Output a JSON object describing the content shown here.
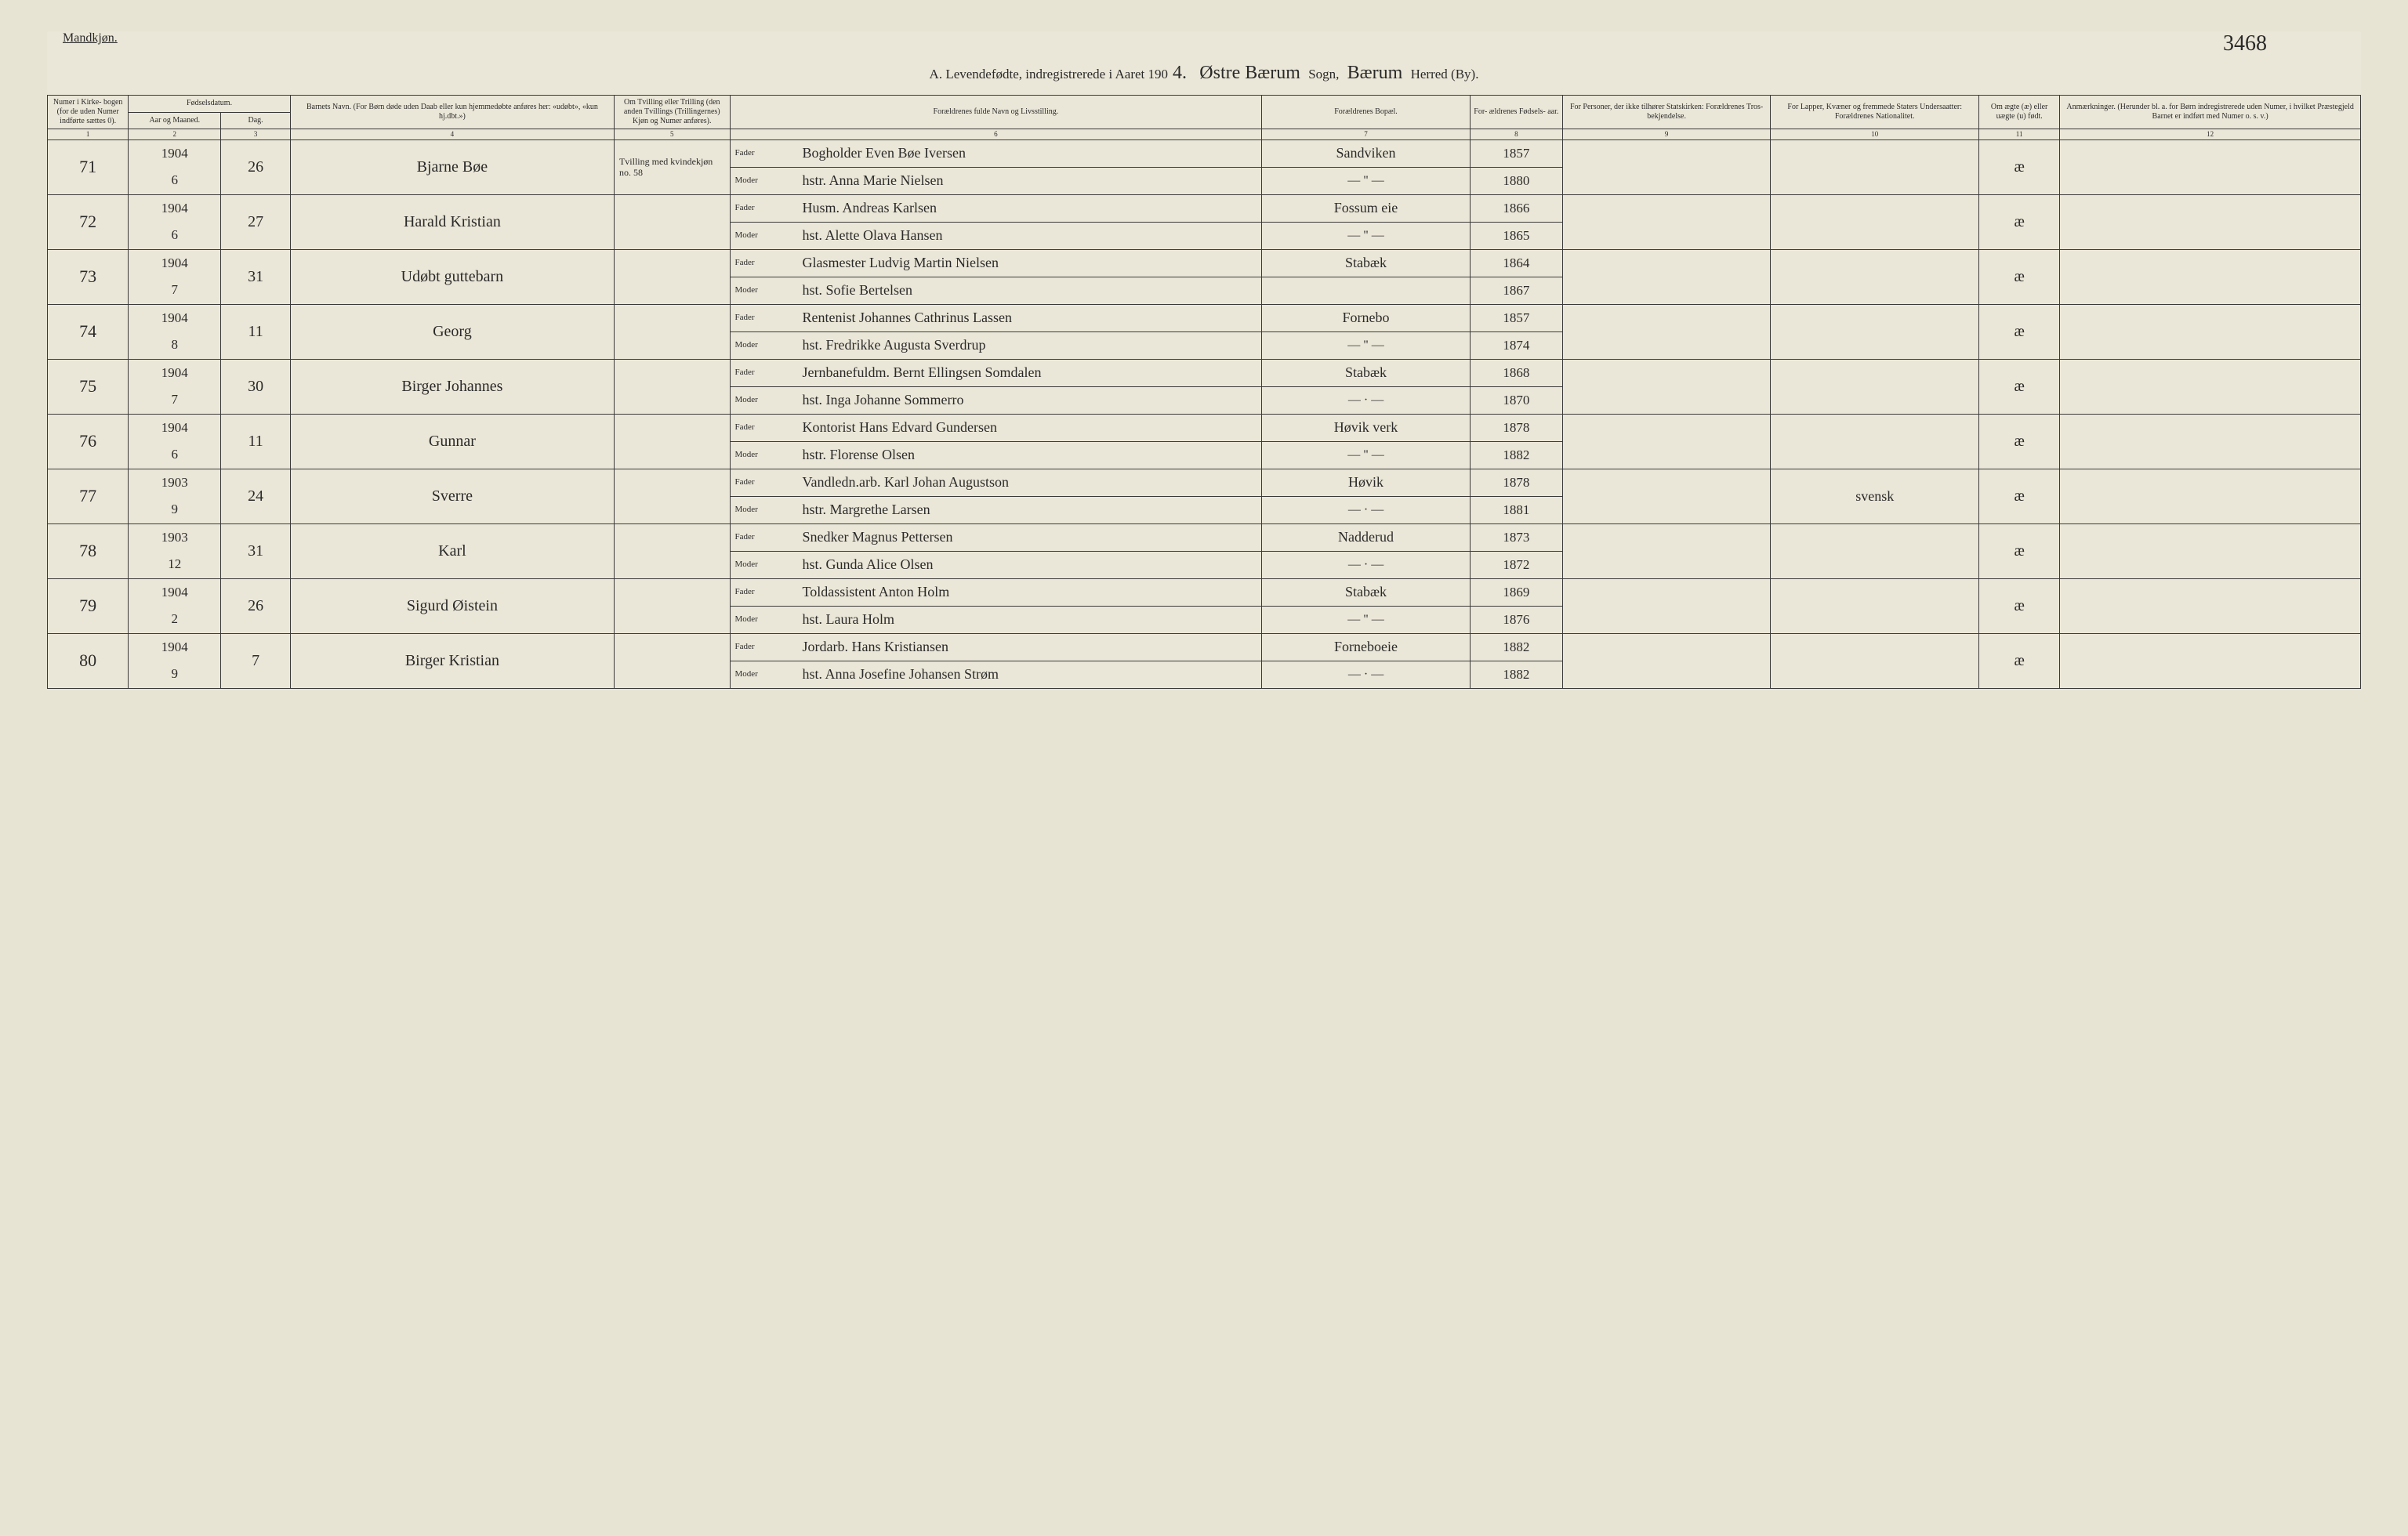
{
  "header": {
    "gender": "Mandkjøn.",
    "page_number": "3468",
    "title_prefix": "A.  Levendefødte, indregistrerede i Aaret 190",
    "year_suffix": "4.",
    "sogn_cursive": "Østre Bærum",
    "sogn_label": "Sogn,",
    "herred_cursive": "Bærum",
    "herred_label": "Herred (By)."
  },
  "columns": {
    "h1": "Numer i Kirke- bogen (for de uden Numer indførte sættes 0).",
    "h2_top": "Fødselsdatum.",
    "h2a": "Aar og Maaned.",
    "h2b": "Dag.",
    "h4": "Barnets Navn.\n(For Børn døde uden Daab eller kun hjemmedøbte anføres her: «udøbt», «kun hj.dbt.»)",
    "h5": "Om Tvilling eller Trilling (den anden Tvillings (Trillingernes) Kjøn og Numer anføres).",
    "h6": "Forældrenes fulde Navn og Livsstilling.",
    "h7": "Forældrenes Bopæl.",
    "h8": "For- ældrenes Fødsels- aar.",
    "h9": "For Personer, der ikke tilhører Statskirken: Forældrenes Tros- bekjendelse.",
    "h10": "For Lapper, Kvæner og fremmede Staters Undersaatter: Forældrenes Nationalitet.",
    "h11": "Om ægte (æ) eller uægte (u) født.",
    "h12": "Anmærkninger.\n(Herunder bl. a. for Børn indregistrerede uden Numer, i hvilket Præstegjeld Barnet er indført med Numer o. s. v.)"
  },
  "colnums": [
    "1",
    "2",
    "3",
    "4",
    "5",
    "6",
    "7",
    "8",
    "9",
    "10",
    "11",
    "12"
  ],
  "parent_labels": {
    "father": "Fader",
    "mother": "Moder"
  },
  "rows": [
    {
      "num": "71",
      "year": "1904",
      "month": "6",
      "day": "26",
      "child": "Bjarne Bøe",
      "twin": "Tvilling med kvindekjøn no. 58",
      "father": "Bogholder Even Bøe Iversen",
      "mother": "hstr. Anna Marie Nielsen",
      "residence_f": "Sandviken",
      "residence_m": "— \" —",
      "byear_f": "1857",
      "byear_m": "1880",
      "rel": "",
      "nat": "",
      "legit": "æ",
      "remark": ""
    },
    {
      "num": "72",
      "year": "1904",
      "month": "6",
      "day": "27",
      "child": "Harald Kristian",
      "twin": "",
      "father": "Husm. Andreas Karlsen",
      "mother": "hst. Alette Olava Hansen",
      "residence_f": "Fossum eie",
      "residence_m": "— \" —",
      "byear_f": "1866",
      "byear_m": "1865",
      "rel": "",
      "nat": "",
      "legit": "æ",
      "remark": ""
    },
    {
      "num": "73",
      "year": "1904",
      "month": "7",
      "day": "31",
      "child": "Udøbt guttebarn",
      "twin": "",
      "father": "Glasmester Ludvig Martin Nielsen",
      "mother": "hst. Sofie Bertelsen",
      "residence_f": "Stabæk",
      "residence_m": "",
      "byear_f": "1864",
      "byear_m": "1867",
      "rel": "",
      "nat": "",
      "legit": "æ",
      "remark": ""
    },
    {
      "num": "74",
      "year": "1904",
      "month": "8",
      "day": "11",
      "child": "Georg",
      "twin": "",
      "father": "Rentenist Johannes Cathrinus Lassen",
      "mother": "hst. Fredrikke Augusta Sverdrup",
      "residence_f": "Fornebo",
      "residence_m": "— \" —",
      "byear_f": "1857",
      "byear_m": "1874",
      "rel": "",
      "nat": "",
      "legit": "æ",
      "remark": ""
    },
    {
      "num": "75",
      "year": "1904",
      "month": "7",
      "day": "30",
      "child": "Birger Johannes",
      "twin": "",
      "father": "Jernbanefuldm. Bernt Ellingsen Somdalen",
      "mother": "hst. Inga Johanne Sommerro",
      "residence_f": "Stabæk",
      "residence_m": "— · —",
      "byear_f": "1868",
      "byear_m": "1870",
      "rel": "",
      "nat": "",
      "legit": "æ",
      "remark": ""
    },
    {
      "num": "76",
      "year": "1904",
      "month": "6",
      "day": "11",
      "child": "Gunnar",
      "twin": "",
      "father": "Kontorist Hans Edvard Gundersen",
      "mother": "hstr. Florense Olsen",
      "residence_f": "Høvik verk",
      "residence_m": "— \" —",
      "byear_f": "1878",
      "byear_m": "1882",
      "rel": "",
      "nat": "",
      "legit": "æ",
      "remark": ""
    },
    {
      "num": "77",
      "year": "1903",
      "month": "9",
      "day": "24",
      "child": "Sverre",
      "twin": "",
      "father": "Vandledn.arb. Karl Johan Augustson",
      "mother": "hstr. Margrethe Larsen",
      "residence_f": "Høvik",
      "residence_m": "— · —",
      "byear_f": "1878",
      "byear_m": "1881",
      "rel": "",
      "nat": "svensk",
      "legit": "æ",
      "remark": ""
    },
    {
      "num": "78",
      "year": "1903",
      "month": "12",
      "day": "31",
      "child": "Karl",
      "twin": "",
      "father": "Snedker Magnus Pettersen",
      "mother": "hst. Gunda Alice Olsen",
      "residence_f": "Nadderud",
      "residence_m": "— · —",
      "byear_f": "1873",
      "byear_m": "1872",
      "rel": "",
      "nat": "",
      "legit": "æ",
      "remark": ""
    },
    {
      "num": "79",
      "year": "1904",
      "month": "2",
      "day": "26",
      "child": "Sigurd Øistein",
      "twin": "",
      "father": "Toldassistent Anton Holm",
      "mother": "hst. Laura Holm",
      "residence_f": "Stabæk",
      "residence_m": "— \" —",
      "byear_f": "1869",
      "byear_m": "1876",
      "rel": "",
      "nat": "",
      "legit": "æ",
      "remark": ""
    },
    {
      "num": "80",
      "year": "1904",
      "month": "9",
      "day": "7",
      "child": "Birger Kristian",
      "twin": "",
      "father": "Jordarb. Hans Kristiansen",
      "mother": "hst. Anna Josefine Johansen Strøm",
      "residence_f": "Forneboeie",
      "residence_m": "— · —",
      "byear_f": "1882",
      "byear_m": "1882",
      "rel": "",
      "nat": "",
      "legit": "æ",
      "remark": ""
    }
  ]
}
